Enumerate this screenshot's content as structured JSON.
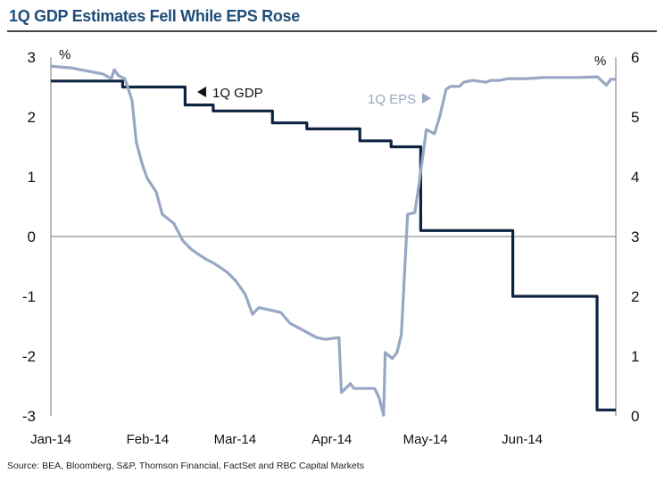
{
  "chart_data": {
    "type": "line",
    "title": "1Q GDP Estimates Fell While EPS Rose",
    "source": "Source: BEA, Bloomberg, S&P, Thomson Financial, FactSet and RBC Capital Markets",
    "x_unit": "day of year 2014 (0 = Jan 1)",
    "x_ticks": [
      {
        "day": 0,
        "label": "Jan-14"
      },
      {
        "day": 31,
        "label": "Feb-14"
      },
      {
        "day": 59,
        "label": "Mar-14"
      },
      {
        "day": 90,
        "label": "Apr-14"
      },
      {
        "day": 120,
        "label": "May-14"
      },
      {
        "day": 151,
        "label": "Jun-14"
      }
    ],
    "xlim": [
      0,
      181
    ],
    "left_axis": {
      "label": "%",
      "ylim": [
        -3,
        3
      ],
      "ticks": [
        3,
        2,
        1,
        0,
        -1,
        -2,
        -3
      ]
    },
    "right_axis": {
      "label": "%",
      "ylim": [
        0,
        6
      ],
      "ticks": [
        6,
        5,
        4,
        3,
        2,
        1,
        0
      ]
    },
    "grid": false,
    "zero_line": true,
    "series": [
      {
        "name": "1Q GDP",
        "annotation": "1Q GDP",
        "axis": "left",
        "color": "#0d2341",
        "step": true,
        "x": [
          0,
          23,
          43,
          52,
          71,
          82,
          99,
          109,
          118.5,
          148,
          175,
          181
        ],
        "y": [
          2.6,
          2.5,
          2.2,
          2.1,
          1.9,
          1.8,
          1.6,
          1.5,
          0.1,
          -1.0,
          -2.9,
          -2.9
        ]
      },
      {
        "name": "1Q EPS",
        "annotation": "1Q EPS",
        "axis": "right",
        "color": "#98a8c4",
        "step": false,
        "x": [
          0,
          6.6,
          9.4,
          16.6,
          19.4,
          20.3,
          21.7,
          23.7,
          26,
          27.4,
          29.4,
          30.9,
          33.7,
          35.7,
          39.4,
          42.3,
          45.1,
          49.4,
          52.3,
          56.6,
          59.4,
          62.3,
          64.6,
          66.6,
          69.4,
          73.7,
          76.6,
          80.9,
          85.1,
          88,
          92.3,
          93.1,
          96,
          97.1,
          103.7,
          105.1,
          106.6,
          107.1,
          109.4,
          110.9,
          112.3,
          114.3,
          116.6,
          118,
          120.3,
          122.9,
          124.6,
          126.6,
          128,
          130.9,
          132.3,
          135.1,
          139.4,
          140.9,
          143.7,
          146.6,
          152.3,
          158,
          163.7,
          169.4,
          175.1,
          178,
          179.4,
          180.9
        ],
        "y": [
          5.85,
          5.82,
          5.79,
          5.72,
          5.64,
          5.79,
          5.69,
          5.64,
          5.28,
          4.57,
          4.19,
          3.97,
          3.75,
          3.37,
          3.22,
          2.93,
          2.78,
          2.63,
          2.55,
          2.4,
          2.25,
          2.03,
          1.7,
          1.81,
          1.78,
          1.73,
          1.55,
          1.43,
          1.31,
          1.28,
          1.31,
          0.39,
          0.54,
          0.46,
          0.46,
          0.31,
          0.01,
          1.06,
          0.96,
          1.06,
          1.36,
          3.37,
          3.4,
          3.9,
          4.79,
          4.72,
          5.01,
          5.46,
          5.51,
          5.51,
          5.58,
          5.61,
          5.58,
          5.61,
          5.61,
          5.64,
          5.64,
          5.66,
          5.66,
          5.66,
          5.67,
          5.53,
          5.63,
          5.63
        ]
      }
    ]
  }
}
